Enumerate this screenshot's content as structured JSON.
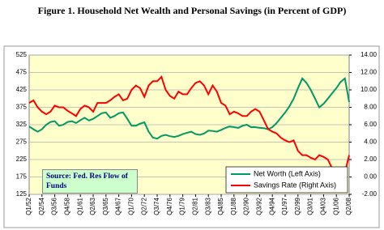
{
  "chart_data": {
    "type": "line",
    "title": "Figure 1. Household Net Wealth and Personal Savings (in Percent of GDP)",
    "annotation": "Source: Fed. Res Flow of Funds",
    "categories": [
      "Q1/52",
      null,
      null,
      "Q2/54",
      null,
      null,
      "Q3/56",
      null,
      null,
      "Q4/58",
      null,
      null,
      "Q1/61",
      null,
      null,
      "Q2/63",
      null,
      null,
      "Q3/65",
      null,
      null,
      "Q4/67",
      null,
      null,
      "Q1/70",
      null,
      null,
      "Q2/72",
      null,
      null,
      "Q3/74",
      null,
      null,
      "Q4/76",
      null,
      null,
      "Q1/79",
      null,
      null,
      "Q2/81",
      null,
      null,
      "Q3/83",
      null,
      null,
      "Q4/85",
      null,
      null,
      "Q1/88",
      null,
      null,
      "Q2/90",
      null,
      null,
      "Q3/92",
      null,
      null,
      "Q4/94",
      null,
      null,
      "Q1/97",
      null,
      null,
      "Q2/99",
      null,
      null,
      "Q3/01",
      null,
      null,
      "Q4/03",
      null,
      null,
      "Q1/06",
      null,
      null,
      "Q2/08"
    ],
    "series": [
      {
        "name": "Net Worth (Left Axis)",
        "color": "#009966",
        "axis": "y",
        "values": [
          320,
          312,
          305,
          312,
          325,
          333,
          335,
          322,
          325,
          333,
          335,
          330,
          338,
          345,
          337,
          342,
          350,
          358,
          360,
          345,
          350,
          358,
          360,
          342,
          322,
          322,
          328,
          332,
          305,
          288,
          285,
          293,
          296,
          292,
          290,
          293,
          298,
          302,
          305,
          298,
          296,
          300,
          308,
          307,
          305,
          310,
          316,
          320,
          318,
          316,
          322,
          325,
          318,
          318,
          316,
          315,
          312,
          318,
          330,
          345,
          360,
          378,
          400,
          430,
          458,
          445,
          425,
          400,
          375,
          385,
          400,
          415,
          430,
          448,
          458,
          390
        ]
      },
      {
        "name": "Savings Rate (Right Axis)",
        "color": "#ff0000",
        "axis": "y2",
        "values": [
          8.5,
          8.8,
          8.0,
          7.5,
          7.2,
          7.5,
          8.2,
          8.0,
          8.0,
          7.6,
          7.3,
          7.0,
          7.8,
          8.2,
          8.0,
          7.5,
          8.5,
          8.5,
          8.5,
          8.8,
          9.2,
          9.5,
          8.8,
          9.0,
          10.0,
          10.5,
          10.2,
          9.2,
          10.5,
          11.0,
          11.0,
          11.5,
          10.0,
          9.3,
          9.0,
          9.8,
          9.5,
          9.5,
          10.2,
          10.8,
          11.0,
          10.5,
          9.5,
          10.5,
          9.8,
          8.5,
          8.2,
          7.2,
          7.5,
          7.3,
          7.0,
          7.0,
          7.5,
          7.8,
          7.5,
          6.5,
          5.5,
          5.2,
          5.0,
          4.5,
          4.2,
          4.0,
          4.2,
          3.0,
          2.5,
          2.5,
          2.2,
          2.0,
          2.5,
          2.3,
          2.0,
          1.0,
          0.5,
          0.5,
          0.5,
          2.5
        ]
      }
    ],
    "ylim": [
      125,
      525
    ],
    "yticks": [
      125,
      175,
      225,
      275,
      325,
      375,
      425,
      475,
      525
    ],
    "y2lim": [
      -2,
      14
    ],
    "y2ticks": [
      {
        "value": -2,
        "label": "-2.00"
      },
      {
        "value": 0,
        "label": "0.00"
      },
      {
        "value": 2,
        "label": "2.00"
      },
      {
        "value": 4,
        "label": "4.00"
      },
      {
        "value": 6,
        "label": "6.00"
      },
      {
        "value": 8,
        "label": "8.00"
      },
      {
        "value": 10,
        "label": "10.00"
      },
      {
        "value": 12,
        "label": "12.00"
      },
      {
        "value": 14,
        "label": "14.00"
      }
    ],
    "grid": true,
    "legend": "lower right",
    "background": "#ffffcc"
  }
}
